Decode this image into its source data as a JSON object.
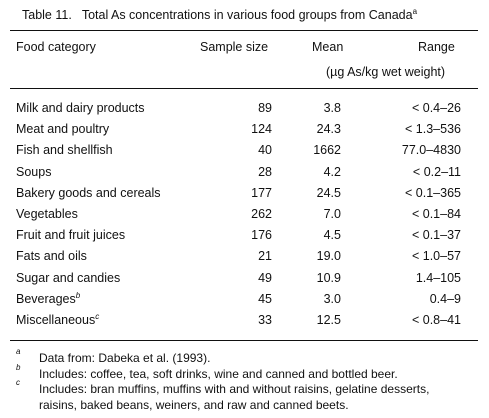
{
  "caption": {
    "label": "Table 11.",
    "title": "Total As concentrations in various food groups from Canada",
    "superscript": "a"
  },
  "headers": {
    "category": "Food category",
    "sample_size": "Sample size",
    "mean": "Mean",
    "range": "Range",
    "unit": "(µg As/kg wet weight)"
  },
  "rows": [
    {
      "category": "Milk and dairy products",
      "sup": "",
      "sample_size": "89",
      "mean": "3.8",
      "range": "< 0.4–26"
    },
    {
      "category": "Meat and poultry",
      "sup": "",
      "sample_size": "124",
      "mean": "24.3",
      "range": "< 1.3–536"
    },
    {
      "category": "Fish and shellfish",
      "sup": "",
      "sample_size": "40",
      "mean": "1662",
      "range": "77.0–4830"
    },
    {
      "category": "Soups",
      "sup": "",
      "sample_size": "28",
      "mean": "4.2",
      "range": "< 0.2–11"
    },
    {
      "category": "Bakery goods and cereals",
      "sup": "",
      "sample_size": "177",
      "mean": "24.5",
      "range": "< 0.1–365"
    },
    {
      "category": "Vegetables",
      "sup": "",
      "sample_size": "262",
      "mean": "7.0",
      "range": "< 0.1–84"
    },
    {
      "category": "Fruit and fruit juices",
      "sup": "",
      "sample_size": "176",
      "mean": "4.5",
      "range": "< 0.1–37"
    },
    {
      "category": "Fats and oils",
      "sup": "",
      "sample_size": "21",
      "mean": "19.0",
      "range": "< 1.0–57"
    },
    {
      "category": "Sugar and candies",
      "sup": "",
      "sample_size": "49",
      "mean": "10.9",
      "range": "1.4–105"
    },
    {
      "category": "Beverages",
      "sup": "b",
      "sample_size": "45",
      "mean": "3.0",
      "range": "0.4–9"
    },
    {
      "category": "Miscellaneous",
      "sup": "c",
      "sample_size": "33",
      "mean": "12.5",
      "range": "< 0.8–41"
    }
  ],
  "footnotes": [
    {
      "mark": "a",
      "lines": [
        "Data from: Dabeka et al. (1993)."
      ]
    },
    {
      "mark": "b",
      "lines": [
        "Includes: coffee, tea, soft drinks, wine and canned and bottled beer."
      ]
    },
    {
      "mark": "c",
      "lines": [
        "Includes: bran muffins, muffins with and without raisins, gelatine desserts,",
        "raisins, baked beans, weiners, and raw and canned beets."
      ]
    }
  ]
}
